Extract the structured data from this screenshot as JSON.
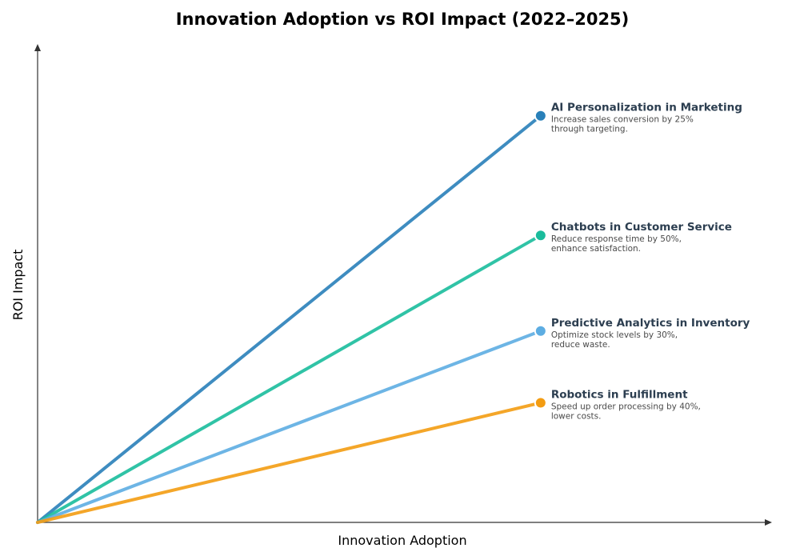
{
  "chart_data": {
    "type": "line",
    "title": "Innovation Adoption vs ROI Impact (2022–2025)",
    "xlabel": "Innovation Adoption",
    "ylabel": "ROI Impact",
    "xlim": [
      0,
      1
    ],
    "ylim": [
      0,
      1
    ],
    "grid": false,
    "legend": "none",
    "series": [
      {
        "name": "AI Personalization in Marketing",
        "annotation_lines": [
          "Increase sales conversion by 25%",
          "through targeting."
        ],
        "color": "#2980b9",
        "x": [
          0,
          0.685
        ],
        "y": [
          0,
          0.85
        ]
      },
      {
        "name": "Chatbots in Customer Service",
        "annotation_lines": [
          "Reduce response time by 50%,",
          "enhance satisfaction."
        ],
        "color": "#1abc9c",
        "x": [
          0,
          0.685
        ],
        "y": [
          0,
          0.6
        ]
      },
      {
        "name": "Predictive Analytics in Inventory",
        "annotation_lines": [
          "Optimize stock levels by 30%,",
          "reduce waste."
        ],
        "color": "#5dade2",
        "x": [
          0,
          0.685
        ],
        "y": [
          0,
          0.4
        ]
      },
      {
        "name": "Robotics in Fulfillment",
        "annotation_lines": [
          "Speed up order processing by 40%,",
          "lower costs."
        ],
        "color": "#f39c12",
        "x": [
          0,
          0.685
        ],
        "y": [
          0,
          0.25
        ]
      }
    ]
  }
}
